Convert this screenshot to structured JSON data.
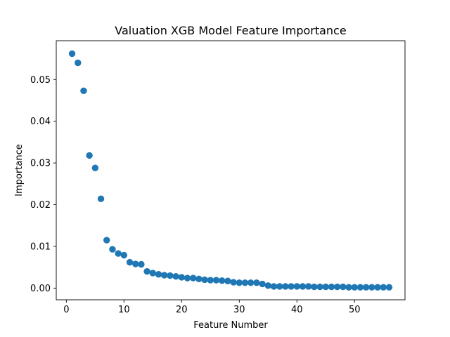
{
  "chart_data": {
    "type": "scatter",
    "title": "Valuation XGB Model Feature Importance",
    "xlabel": "Feature Number",
    "ylabel": "Importance",
    "xlim": [
      -1.75,
      58.75
    ],
    "ylim": [
      -0.0028,
      0.0593
    ],
    "xticks": [
      0,
      10,
      20,
      30,
      40,
      50
    ],
    "yticks": [
      0.0,
      0.01,
      0.02,
      0.03,
      0.04,
      0.05
    ],
    "ytick_labels": [
      "0.00",
      "0.01",
      "0.02",
      "0.03",
      "0.04",
      "0.05"
    ],
    "grid": false,
    "legend": "none",
    "marker_color": "#1f77b4",
    "series": [
      {
        "x": [
          1,
          2,
          3,
          4,
          5,
          6,
          7,
          8,
          9,
          10,
          11,
          12,
          13,
          14,
          15,
          16,
          17,
          18,
          19,
          20,
          21,
          22,
          23,
          24,
          25,
          26,
          27,
          28,
          29,
          30,
          31,
          32,
          33,
          34,
          35,
          36,
          37,
          38,
          39,
          40,
          41,
          42,
          43,
          44,
          45,
          46,
          47,
          48,
          49,
          50,
          51,
          52,
          53,
          54,
          55,
          56
        ],
        "y": [
          0.0562,
          0.054,
          0.0473,
          0.0318,
          0.0288,
          0.0214,
          0.0115,
          0.0093,
          0.0083,
          0.0079,
          0.0062,
          0.0058,
          0.0057,
          0.004,
          0.0036,
          0.0033,
          0.0031,
          0.003,
          0.0028,
          0.0026,
          0.0024,
          0.0024,
          0.0022,
          0.002,
          0.0019,
          0.0019,
          0.0018,
          0.0017,
          0.0014,
          0.0013,
          0.0013,
          0.0013,
          0.0013,
          0.001,
          0.0006,
          0.0004,
          0.0004,
          0.0004,
          0.0004,
          0.0004,
          0.0004,
          0.0004,
          0.0003,
          0.0003,
          0.0003,
          0.0003,
          0.0003,
          0.0003,
          0.0002,
          0.0002,
          0.0002,
          0.0002,
          0.0002,
          0.0002,
          0.0002,
          0.0002
        ]
      }
    ]
  }
}
